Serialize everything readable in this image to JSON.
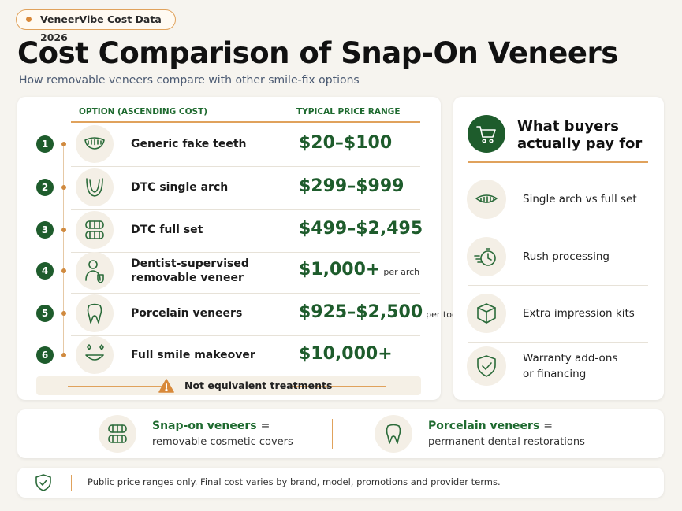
{
  "badge": "VeneerVibe Cost Data 2026",
  "title": "Cost Comparison of Snap-On Veneers",
  "subtitle": "How removable veneers compare with other smile-fix options",
  "table": {
    "headers": [
      "OPTION (ASCENDING COST)",
      "TYPICAL PRICE RANGE"
    ],
    "rows": [
      {
        "number": "1",
        "option": [
          "Generic fake teeth"
        ],
        "price": "$20–$100"
      },
      {
        "number": "2",
        "option": [
          "DTC single arch"
        ],
        "price": "$299–$999"
      },
      {
        "number": "3",
        "option": [
          "DTC full set"
        ],
        "price": "$499–$2,495"
      },
      {
        "number": "4",
        "option": [
          "Dentist-supervised",
          "removable veneer"
        ],
        "price": "$1,000+",
        "unit": "per arch"
      },
      {
        "number": "5",
        "option": [
          "Porcelain veneers"
        ],
        "price": "$925–$2,500",
        "unit": "per tooth"
      },
      {
        "number": "6",
        "option": [
          "Full smile makeover"
        ],
        "price": "$10,000+"
      }
    ],
    "warning": "Not equivalent treatments"
  },
  "side": {
    "title": [
      "What buyers",
      "actually pay for"
    ],
    "items": [
      [
        "Single arch vs full set"
      ],
      [
        "Rush processing"
      ],
      [
        "Extra impression kits"
      ],
      [
        "Warranty add-ons",
        "or financing"
      ]
    ]
  },
  "compare": [
    {
      "term": "Snap-on veneers",
      "equals": "=",
      "meaning": "removable cosmetic covers"
    },
    {
      "term": "Porcelain veneers",
      "equals": "=",
      "meaning": "permanent dental restorations"
    }
  ],
  "footnote": "Public price ranges only. Final cost varies by brand, model, promotions and provider terms."
}
